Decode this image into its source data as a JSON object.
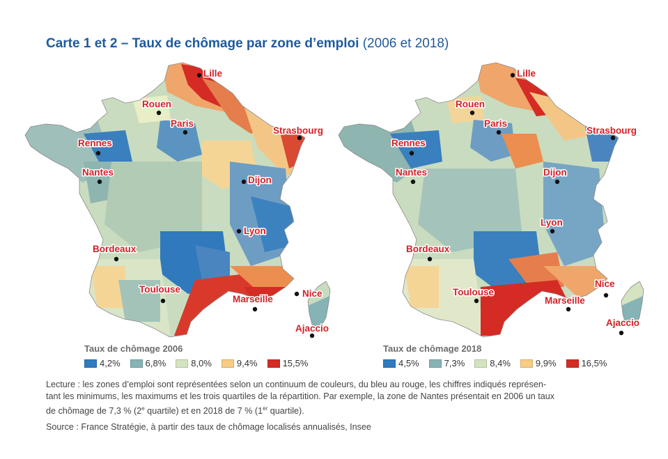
{
  "title": {
    "main": "Carte 1 et 2 – Taux de chômage par zone d’emploi",
    "years": "(2006 et 2018)"
  },
  "colors": {
    "q1": "#2f7bbf",
    "q2": "#86b3b5",
    "q3": "#d4e3c0",
    "q4": "#f8cc84",
    "q5": "#d52b25",
    "orange": "#ec8e4f",
    "city_label": "#d42027"
  },
  "maps": [
    {
      "name": "map-2006",
      "cities": [
        "Lille",
        "Rouen",
        "Paris",
        "Strasbourg",
        "Rennes",
        "Nantes",
        "Dijon",
        "Lyon",
        "Bordeaux",
        "Toulouse",
        "Marseille",
        "Nice",
        "Ajaccio"
      ],
      "legend": {
        "title": "Taux de chômage 2006",
        "values": [
          "4,2%",
          "6,8%",
          "8,0%",
          "9,4%",
          "15,5%"
        ]
      }
    },
    {
      "name": "map-2018",
      "cities": [
        "Lille",
        "Rouen",
        "Paris",
        "Strasbourg",
        "Rennes",
        "Nantes",
        "Dijon",
        "Lyon",
        "Bordeaux",
        "Toulouse",
        "Marseille",
        "Nice",
        "Ajaccio"
      ],
      "legend": {
        "title": "Taux de chômage 2018",
        "values": [
          "4,5%",
          "7,3%",
          "8,4%",
          "9,9%",
          "16,5%"
        ]
      }
    }
  ],
  "lecture": {
    "line1": "Lecture : les zones d’emploi sont représentées selon un continuum de couleurs, du bleu au rouge, les chiffres indiqués représen-",
    "line2": "tant les minimums, les maximums et les trois quartiles de la répartition. Par exemple, la zone de Nantes présentait en 2006 un taux",
    "line3a": "de chômage de 7,3 % (2",
    "sup1": "e",
    "line3b": " quartile) et en 2018 de 7 % (1",
    "sup2": "er",
    "line3c": " quartile)."
  },
  "source": "Source : France Stratégie, à partir des taux de chômage localisés annualisés, Insee"
}
